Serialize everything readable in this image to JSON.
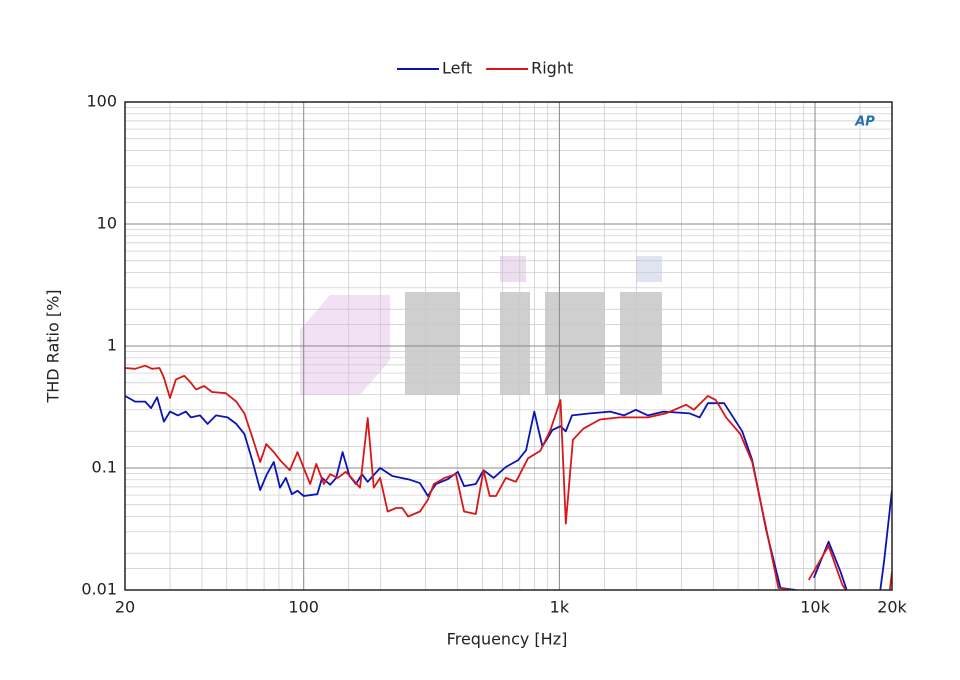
{
  "chart_data": {
    "type": "line",
    "xlabel": "Frequency [Hz]",
    "ylabel": "THD Ratio [%]",
    "logo": "AP",
    "xscale": "log",
    "yscale": "log",
    "grid": true,
    "legend": "top",
    "xlim": [
      20,
      20000
    ],
    "ylim": [
      0.01,
      100
    ],
    "xticks": [
      20,
      100,
      {
        "value": 1000,
        "label": "1k"
      },
      {
        "value": 10000,
        "label": "10k"
      },
      {
        "value": 20000,
        "label": "20k"
      }
    ],
    "yticks": [
      0.01,
      0.1,
      1,
      10,
      100
    ],
    "series": [
      {
        "name": "Left",
        "color": "#0a14b4",
        "x": [
          20,
          21.9,
          24,
          25.3,
          26.7,
          28.4,
          30,
          32.2,
          34.6,
          36.2,
          39.3,
          42.1,
          45.4,
          50.4,
          54.5,
          58.6,
          62.9,
          67.6,
          71.8,
          76.4,
          80.8,
          85.2,
          89.8,
          94.6,
          100,
          113,
          118,
          127,
          134,
          142,
          151,
          160,
          169,
          178,
          199,
          222,
          261,
          285,
          306,
          329,
          366,
          401,
          424,
          471,
          505,
          553,
          617,
          690,
          741,
          798,
          858,
          939,
          1010,
          1060,
          1120,
          1320,
          1580,
          1790,
          1990,
          2220,
          2560,
          3230,
          3540,
          3810,
          4410,
          5190,
          5680,
          6440,
          7320,
          8420,
          9000,
          9900,
          11300,
          12600,
          13300,
          15000,
          18000,
          18650,
          20000
        ],
        "values": [
          0.39,
          0.35,
          0.35,
          0.31,
          0.38,
          0.24,
          0.29,
          0.27,
          0.29,
          0.26,
          0.27,
          0.23,
          0.27,
          0.26,
          0.23,
          0.19,
          0.116,
          0.066,
          0.089,
          0.112,
          0.069,
          0.083,
          0.061,
          0.065,
          0.059,
          0.061,
          0.083,
          0.073,
          0.083,
          0.135,
          0.086,
          0.074,
          0.089,
          0.077,
          0.1,
          0.086,
          0.08,
          0.075,
          0.059,
          0.074,
          0.081,
          0.093,
          0.071,
          0.074,
          0.096,
          0.083,
          0.102,
          0.116,
          0.14,
          0.29,
          0.15,
          0.205,
          0.22,
          0.2,
          0.27,
          0.28,
          0.29,
          0.27,
          0.3,
          0.27,
          0.29,
          0.28,
          0.26,
          0.34,
          0.34,
          0.2,
          0.116,
          0.031,
          0.0104,
          0.01,
          null,
          0.0126,
          0.0249,
          0.014,
          0.01,
          null,
          0.01,
          0.0175,
          0.066
        ]
      },
      {
        "name": "Right",
        "color": "#d81818",
        "x": [
          20,
          21.9,
          24,
          25.5,
          27.3,
          28.4,
          30,
          31.6,
          34.1,
          35.9,
          37.9,
          40.8,
          43.8,
          49.6,
          54.5,
          58.6,
          62.9,
          67.6,
          71.4,
          76.4,
          80.8,
          88.2,
          94.6,
          100,
          106,
          112,
          120,
          127,
          136,
          146,
          154,
          166,
          178,
          188,
          199,
          213,
          230,
          243,
          256,
          285,
          306,
          323,
          356,
          394,
          424,
          471,
          505,
          534,
          565,
          617,
          676,
          754,
          842,
          922,
          1010,
          1060,
          1130,
          1240,
          1440,
          1720,
          2220,
          2610,
          3130,
          3360,
          3810,
          4090,
          4490,
          5100,
          5680,
          6440,
          7190,
          8120,
          8800,
          9450,
          11300,
          12800,
          13200,
          16000,
          19600,
          20000
        ],
        "values": [
          0.66,
          0.65,
          0.69,
          0.65,
          0.66,
          0.55,
          0.375,
          0.53,
          0.57,
          0.51,
          0.44,
          0.47,
          0.42,
          0.41,
          0.35,
          0.28,
          0.18,
          0.112,
          0.157,
          0.135,
          0.116,
          0.096,
          0.135,
          0.1,
          0.074,
          0.108,
          0.074,
          0.089,
          0.083,
          0.093,
          0.083,
          0.069,
          0.257,
          0.069,
          0.083,
          0.044,
          0.047,
          0.047,
          0.04,
          0.044,
          0.055,
          0.074,
          0.083,
          0.089,
          0.044,
          0.042,
          0.096,
          0.059,
          0.059,
          0.083,
          0.077,
          0.12,
          0.138,
          0.205,
          0.36,
          0.035,
          0.17,
          0.21,
          0.25,
          0.26,
          0.26,
          0.28,
          0.33,
          0.3,
          0.39,
          0.36,
          0.26,
          0.19,
          0.112,
          0.032,
          0.0104,
          0.01,
          null,
          0.0121,
          0.023,
          0.011,
          0.01,
          null,
          0.01,
          0.0141
        ]
      }
    ]
  }
}
